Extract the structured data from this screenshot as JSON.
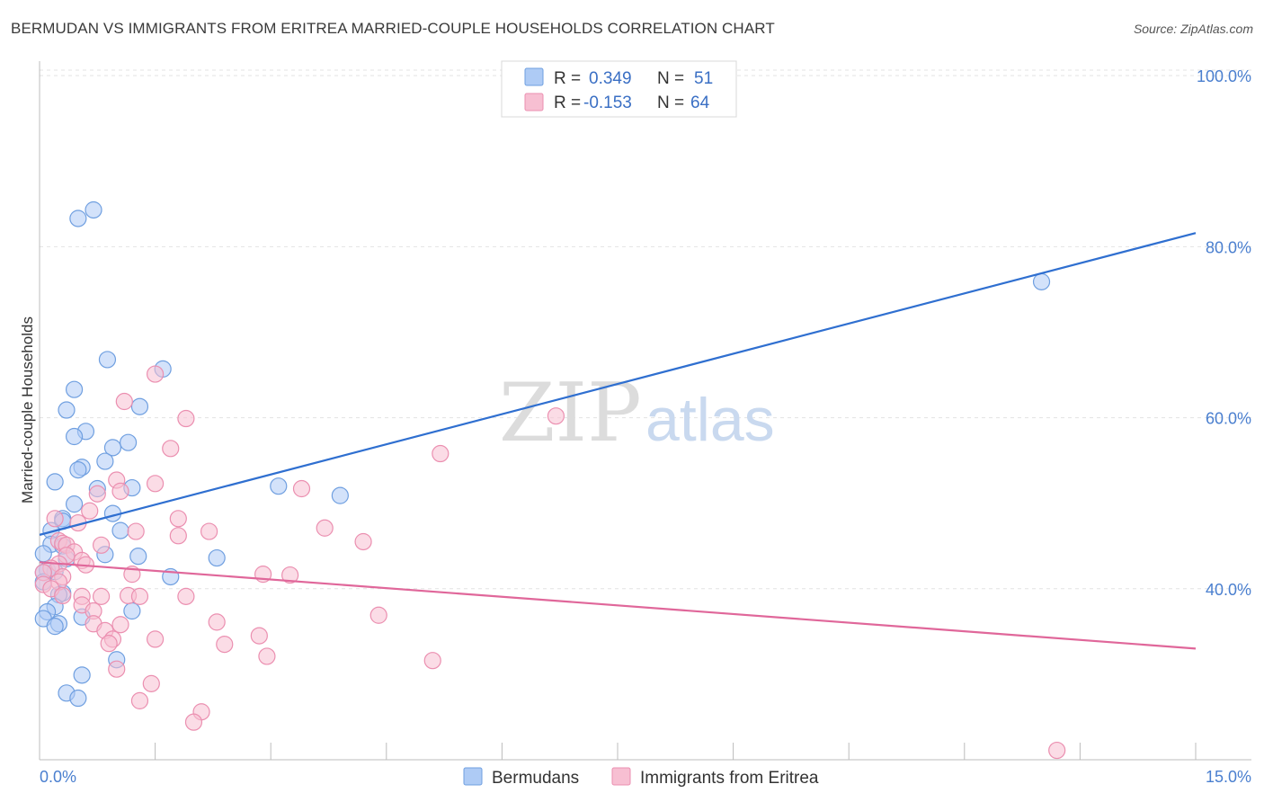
{
  "title": "BERMUDAN VS IMMIGRANTS FROM ERITREA MARRIED-COUPLE HOUSEHOLDS CORRELATION CHART",
  "source": "Source: ZipAtlas.com",
  "watermark": {
    "zip": "ZIP",
    "atlas": "atlas"
  },
  "colors": {
    "blue_fill": "#aecbf5",
    "blue_stroke": "#6f9fe0",
    "blue_line": "#2f6fd0",
    "pink_fill": "#f7bfd2",
    "pink_stroke": "#eb8fb0",
    "pink_line": "#e0679a",
    "grid": "#e3e3e3",
    "tick_text": "#4a7fcf"
  },
  "legend": {
    "rows": [
      {
        "r_label": "R =",
        "r_value": "0.349",
        "n_label": "N =",
        "n_value": "51"
      },
      {
        "r_label": "R =",
        "r_value": "-0.153",
        "n_label": "N =",
        "n_value": "64"
      }
    ]
  },
  "chart_data": {
    "type": "scatter",
    "title": "BERMUDAN VS IMMIGRANTS FROM ERITREA MARRIED-COUPLE HOUSEHOLDS CORRELATION CHART",
    "xlabel": "",
    "ylabel": "Married-couple Households",
    "xlim": [
      0,
      15
    ],
    "ylim": [
      20,
      101.7
    ],
    "x_tick_labels": [
      "0.0%",
      "15.0%"
    ],
    "y_ticks": [
      40,
      60,
      80,
      100
    ],
    "y_tick_labels": [
      "40.0%",
      "60.0%",
      "80.0%",
      "100.0%"
    ],
    "legend_position": "top-center",
    "series": [
      {
        "name": "Bermudans",
        "r": 0.349,
        "n": 51,
        "trend": {
          "x": [
            0,
            15
          ],
          "y": [
            46.3,
            81.6
          ]
        },
        "points": [
          [
            0.5,
            83.3
          ],
          [
            0.7,
            84.3
          ],
          [
            0.88,
            66.8
          ],
          [
            1.6,
            65.7
          ],
          [
            0.45,
            63.3
          ],
          [
            1.3,
            61.3
          ],
          [
            0.35,
            60.9
          ],
          [
            0.6,
            58.4
          ],
          [
            0.45,
            57.8
          ],
          [
            1.15,
            57.1
          ],
          [
            0.95,
            56.5
          ],
          [
            0.85,
            54.9
          ],
          [
            0.55,
            54.2
          ],
          [
            0.5,
            53.9
          ],
          [
            0.2,
            52.5
          ],
          [
            1.2,
            51.8
          ],
          [
            0.75,
            51.7
          ],
          [
            3.1,
            52.0
          ],
          [
            3.9,
            50.9
          ],
          [
            0.45,
            49.9
          ],
          [
            0.95,
            48.8
          ],
          [
            0.3,
            48.2
          ],
          [
            0.3,
            47.9
          ],
          [
            1.05,
            46.8
          ],
          [
            0.15,
            46.8
          ],
          [
            0.15,
            45.2
          ],
          [
            0.3,
            45.0
          ],
          [
            0.05,
            44.1
          ],
          [
            0.85,
            44.0
          ],
          [
            1.28,
            43.8
          ],
          [
            2.3,
            43.6
          ],
          [
            0.35,
            43.5
          ],
          [
            0.1,
            42.2
          ],
          [
            0.2,
            42.0
          ],
          [
            0.05,
            41.9
          ],
          [
            1.7,
            41.4
          ],
          [
            0.05,
            40.8
          ],
          [
            0.3,
            39.5
          ],
          [
            0.25,
            39.3
          ],
          [
            0.2,
            37.9
          ],
          [
            1.2,
            37.4
          ],
          [
            0.1,
            37.3
          ],
          [
            0.55,
            36.7
          ],
          [
            0.05,
            36.5
          ],
          [
            0.25,
            35.9
          ],
          [
            0.2,
            35.6
          ],
          [
            1.0,
            31.7
          ],
          [
            0.55,
            29.9
          ],
          [
            0.35,
            27.8
          ],
          [
            0.5,
            27.2
          ],
          [
            13.0,
            75.9
          ]
        ]
      },
      {
        "name": "Immigrants from Eritrea",
        "r": -0.153,
        "n": 64,
        "trend": {
          "x": [
            0,
            15
          ],
          "y": [
            43.1,
            33.0
          ]
        },
        "points": [
          [
            1.5,
            65.1
          ],
          [
            1.1,
            61.9
          ],
          [
            1.9,
            59.9
          ],
          [
            6.7,
            60.2
          ],
          [
            1.7,
            56.4
          ],
          [
            5.2,
            55.8
          ],
          [
            1.5,
            52.3
          ],
          [
            1.0,
            52.7
          ],
          [
            1.05,
            51.4
          ],
          [
            3.4,
            51.7
          ],
          [
            0.75,
            51.1
          ],
          [
            0.65,
            49.1
          ],
          [
            1.8,
            48.2
          ],
          [
            0.2,
            48.2
          ],
          [
            0.5,
            47.7
          ],
          [
            3.7,
            47.1
          ],
          [
            2.2,
            46.7
          ],
          [
            1.25,
            46.7
          ],
          [
            1.8,
            46.2
          ],
          [
            0.25,
            45.6
          ],
          [
            4.2,
            45.5
          ],
          [
            0.3,
            45.3
          ],
          [
            0.35,
            45.1
          ],
          [
            0.8,
            45.1
          ],
          [
            0.45,
            44.3
          ],
          [
            0.35,
            43.9
          ],
          [
            0.55,
            43.3
          ],
          [
            0.25,
            42.9
          ],
          [
            0.6,
            42.8
          ],
          [
            0.15,
            42.4
          ],
          [
            0.05,
            41.9
          ],
          [
            0.3,
            41.4
          ],
          [
            1.2,
            41.7
          ],
          [
            2.9,
            41.7
          ],
          [
            3.25,
            41.6
          ],
          [
            0.25,
            40.8
          ],
          [
            0.05,
            40.5
          ],
          [
            0.15,
            40.0
          ],
          [
            0.3,
            39.2
          ],
          [
            0.55,
            39.1
          ],
          [
            0.8,
            39.1
          ],
          [
            1.15,
            39.2
          ],
          [
            1.3,
            39.1
          ],
          [
            1.9,
            39.1
          ],
          [
            0.55,
            38.1
          ],
          [
            0.7,
            37.4
          ],
          [
            4.4,
            36.9
          ],
          [
            2.3,
            36.1
          ],
          [
            0.7,
            35.9
          ],
          [
            1.05,
            35.8
          ],
          [
            0.85,
            35.1
          ],
          [
            0.95,
            34.1
          ],
          [
            1.5,
            34.1
          ],
          [
            2.85,
            34.5
          ],
          [
            0.9,
            33.6
          ],
          [
            2.4,
            33.5
          ],
          [
            2.95,
            32.1
          ],
          [
            5.1,
            31.6
          ],
          [
            1.0,
            30.6
          ],
          [
            1.45,
            28.9
          ],
          [
            1.3,
            26.9
          ],
          [
            2.1,
            25.6
          ],
          [
            2.0,
            24.4
          ],
          [
            13.2,
            21.1
          ]
        ]
      }
    ]
  }
}
